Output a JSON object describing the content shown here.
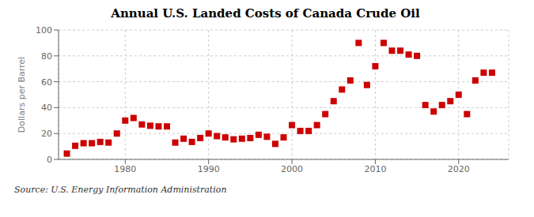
{
  "chart_data": {
    "type": "scatter",
    "title": "Annual U.S. Landed Costs of Canada Crude Oil",
    "ylabel": "Dollars per Barrel",
    "annotation": "Source: U.S. Energy Information Administration",
    "x": [
      1973,
      1974,
      1975,
      1976,
      1977,
      1978,
      1979,
      1980,
      1981,
      1982,
      1983,
      1984,
      1985,
      1986,
      1987,
      1988,
      1989,
      1990,
      1991,
      1992,
      1993,
      1994,
      1995,
      1996,
      1997,
      1998,
      1999,
      2000,
      2001,
      2002,
      2003,
      2004,
      2005,
      2006,
      2007,
      2008,
      2009,
      2010,
      2011,
      2012,
      2013,
      2014,
      2015,
      2016,
      2017,
      2018,
      2019,
      2020,
      2021,
      2022,
      2023,
      2024
    ],
    "values": [
      4.5,
      10.5,
      12.5,
      12.5,
      13.5,
      13.0,
      20.0,
      30.0,
      32.0,
      27.0,
      26.0,
      25.5,
      25.5,
      13.0,
      16.0,
      13.5,
      16.5,
      20.0,
      18.0,
      17.0,
      15.5,
      16.0,
      16.5,
      19.0,
      17.5,
      12.0,
      17.0,
      26.5,
      22.0,
      22.0,
      26.5,
      35.0,
      45.0,
      54.0,
      61.0,
      90.0,
      57.5,
      72.0,
      90.0,
      84.0,
      84.0,
      81.0,
      80.0,
      42.0,
      37.0,
      42.0,
      45.0,
      50.0,
      35.0,
      61.0,
      67.0,
      67.0
    ],
    "color": "#cc0000",
    "marker": "square",
    "xlim": [
      1972,
      2026
    ],
    "ylim": [
      0,
      100
    ],
    "xticks": [
      1980,
      1990,
      2000,
      2010,
      2020
    ],
    "yticks": [
      0,
      20,
      40,
      60,
      80,
      100
    ],
    "grid": true
  }
}
